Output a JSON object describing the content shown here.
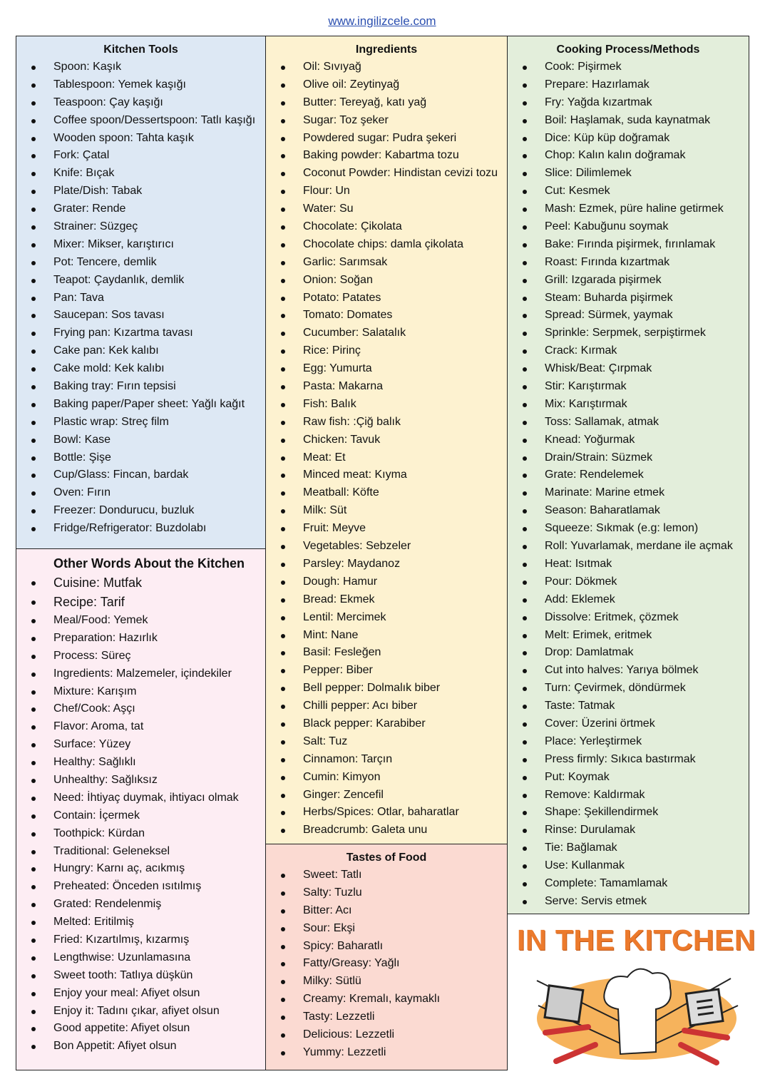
{
  "header": {
    "url": "www.ingilizcele.com"
  },
  "kitchen_tools": {
    "title": "Kitchen Tools",
    "items": [
      "Spoon: Kaşık",
      "Tablespoon: Yemek kaşığı",
      "Teaspoon: Çay kaşığı",
      "Coffee spoon/Dessertspoon: Tatlı kaşığı",
      "Wooden spoon: Tahta kaşık",
      "Fork: Çatal",
      "Knife: Bıçak",
      "Plate/Dish: Tabak",
      "Grater: Rende",
      "Strainer: Süzgeç",
      "Mixer: Mikser, karıştırıcı",
      "Pot: Tencere, demlik",
      "Teapot: Çaydanlık, demlik",
      "Pan: Tava",
      "Saucepan: Sos tavası",
      "Frying pan: Kızartma tavası",
      "Cake pan: Kek kalıbı",
      "Cake mold: Kek kalıbı",
      "Baking tray: Fırın tepsisi",
      "Baking paper/Paper sheet: Yağlı kağıt",
      "Plastic wrap: Streç film",
      "Bowl: Kase",
      "Bottle: Şişe",
      "Cup/Glass: Fincan, bardak",
      "Oven: Fırın",
      "Freezer: Dondurucu, buzluk",
      "Fridge/Refrigerator: Buzdolabı"
    ]
  },
  "other_words": {
    "title": "Other Words About the Kitchen",
    "large_items": [
      "Cuisine: Mutfak",
      "Recipe: Tarif"
    ],
    "items": [
      "Meal/Food: Yemek",
      "Preparation: Hazırlık",
      "Process: Süreç",
      "Ingredients: Malzemeler, içindekiler",
      "Mixture: Karışım",
      "Chef/Cook: Aşçı",
      "Flavor: Aroma, tat",
      "Surface: Yüzey",
      "Healthy: Sağlıklı",
      "Unhealthy: Sağlıksız",
      "Need: İhtiyaç duymak, ihtiyacı olmak",
      "Contain: İçermek",
      "Toothpick: Kürdan",
      "Traditional: Geleneksel",
      "Hungry: Karnı aç, acıkmış",
      "Preheated: Önceden ısıtılmış",
      "Grated: Rendelenmiş",
      "Melted: Eritilmiş",
      "Fried: Kızartılmış, kızarmış",
      "Lengthwise: Uzunlamasına",
      "Sweet tooth: Tatlıya düşkün",
      "Enjoy your meal: Afiyet olsun",
      "Enjoy it: Tadını çıkar, afiyet olsun",
      "Good appetite: Afiyet olsun",
      "Bon Appetit: Afiyet olsun"
    ]
  },
  "ingredients": {
    "title": "Ingredients",
    "items": [
      "Oil: Sıvıyağ",
      "Olive oil: Zeytinyağ",
      "Butter: Tereyağ, katı yağ",
      "Sugar: Toz şeker",
      "Powdered sugar: Pudra şekeri",
      "Baking powder: Kabartma tozu",
      "Coconut Powder: Hindistan cevizi tozu",
      "Flour: Un",
      "Water: Su",
      "Chocolate: Çikolata",
      "Chocolate chips: damla çikolata",
      "Garlic: Sarımsak",
      "Onion: Soğan",
      "Potato: Patates",
      "Tomato: Domates",
      "Cucumber: Salatalık",
      "Rice: Pirinç",
      "Egg: Yumurta",
      "Pasta: Makarna",
      "Fish: Balık",
      "Raw fish: :Çiğ balık",
      "Chicken: Tavuk",
      "Meat: Et",
      "Minced meat: Kıyma",
      "Meatball: Köfte",
      "Milk: Süt",
      "Fruit: Meyve",
      "Vegetables: Sebzeler",
      "Parsley: Maydanoz",
      "Dough: Hamur",
      "Bread: Ekmek",
      "Lentil: Mercimek",
      "Mint: Nane",
      "Basil: Fesleğen",
      "Pepper: Biber",
      "Bell pepper: Dolmalık biber",
      "Chilli pepper: Acı biber",
      "Black pepper: Karabiber",
      "Salt: Tuz",
      "Cinnamon: Tarçın",
      "Cumin: Kimyon",
      "Ginger: Zencefil",
      "Herbs/Spices: Otlar, baharatlar",
      "Breadcrumb: Galeta unu"
    ]
  },
  "tastes": {
    "title": "Tastes of Food",
    "items": [
      "Sweet: Tatlı",
      "Salty: Tuzlu",
      "Bitter: Acı",
      "Sour: Ekşi",
      "Spicy: Baharatlı",
      "Fatty/Greasy: Yağlı",
      "Milky: Sütlü",
      "Creamy: Kremalı, kaymaklı",
      "Tasty: Lezzetli",
      "Delicious: Lezzetli",
      "Yummy: Lezzetli"
    ]
  },
  "cooking": {
    "title": "Cooking Process/Methods",
    "items": [
      "Cook: Pişirmek",
      "Prepare: Hazırlamak",
      "Fry: Yağda kızartmak",
      "Boil: Haşlamak, suda kaynatmak",
      "Dice: Küp küp doğramak",
      "Chop: Kalın kalın doğramak",
      "Slice: Dilimlemek",
      "Cut: Kesmek",
      "Mash: Ezmek, püre haline getirmek",
      "Peel: Kabuğunu soymak",
      "Bake: Fırında pişirmek, fırınlamak",
      "Roast: Fırında kızartmak",
      "Grill: Izgarada pişirmek",
      "Steam: Buharda pişirmek",
      "Spread: Sürmek, yaymak",
      "Sprinkle: Serpmek, serpiştirmek",
      "Crack: Kırmak",
      "Whisk/Beat: Çırpmak",
      "Stir: Karıştırmak",
      "Mix: Karıştırmak",
      "Toss: Sallamak, atmak",
      "Knead: Yoğurmak",
      "Drain/Strain: Süzmek",
      "Grate: Rendelemek",
      "Marinate: Marine etmek",
      "Season: Baharatlamak",
      "Squeeze: Sıkmak (e.g: lemon)",
      "Roll: Yuvarlamak, merdane ile açmak",
      "Heat: Isıtmak",
      "Pour: Dökmek",
      "Add: Eklemek",
      "Dissolve: Eritmek, çözmek",
      "Melt: Erimek, eritmek",
      "Drop: Damlatmak",
      "Cut into halves: Yarıya bölmek",
      "Turn: Çevirmek, döndürmek",
      "Taste: Tatmak",
      "Cover: Üzerini örtmek",
      "Place: Yerleştirmek",
      "Press firmly: Sıkıca bastırmak",
      "Put: Koymak",
      "Remove: Kaldırmak",
      "Shape: Şekillendirmek",
      "Rinse: Durulamak",
      "Tie: Bağlamak",
      "Use: Kullanmak",
      "Complete: Tamamlamak",
      "Serve: Servis etmek"
    ]
  },
  "logo": {
    "title": "IN THE KITCHEN"
  },
  "colors": {
    "tools": "#dde8f4",
    "other": "#fdedf3",
    "ingredients": "#fdf2d0",
    "tastes": "#fbdad2",
    "cooking": "#e3eedb",
    "logo_orange": "#ec7a2c"
  }
}
